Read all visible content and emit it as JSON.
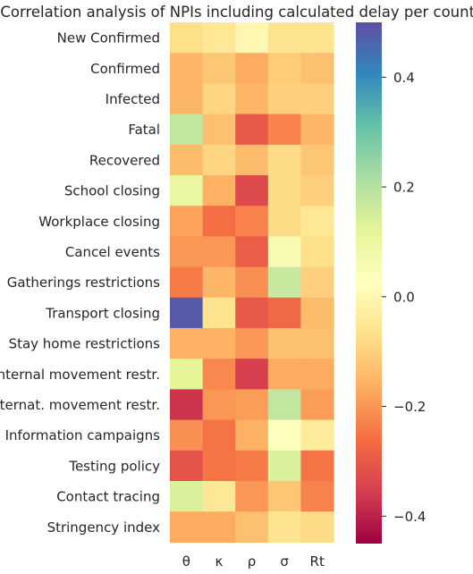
{
  "chart_data": {
    "type": "heatmap",
    "title": "Correlation analysis of NPIs including calculated delay per country",
    "columns": [
      "θ",
      "κ",
      "ρ",
      "σ",
      "Rt"
    ],
    "rows": [
      "New Confirmed",
      "Confirmed",
      "Infected",
      "Fatal",
      "Recovered",
      "School closing",
      "Workplace closing",
      "Cancel events",
      "Gatherings restrictions",
      "Transport closing",
      "Stay home restrictions",
      "Internal movement restr.",
      "Internat. movement restr.",
      "Information campaigns",
      "Testing policy",
      "Contact tracing",
      "Stringency index"
    ],
    "values": [
      [
        -0.07,
        -0.05,
        0.0,
        -0.06,
        -0.06
      ],
      [
        -0.15,
        -0.12,
        -0.17,
        -0.11,
        -0.13
      ],
      [
        -0.15,
        -0.09,
        -0.15,
        -0.1,
        -0.1
      ],
      [
        0.18,
        -0.13,
        -0.3,
        -0.23,
        -0.15
      ],
      [
        -0.14,
        -0.09,
        -0.14,
        -0.08,
        -0.12
      ],
      [
        0.1,
        -0.16,
        -0.33,
        -0.08,
        -0.1
      ],
      [
        -0.18,
        -0.26,
        -0.23,
        -0.08,
        -0.05
      ],
      [
        -0.2,
        -0.2,
        -0.29,
        0.06,
        -0.07
      ],
      [
        -0.24,
        -0.15,
        -0.21,
        0.17,
        -0.1
      ],
      [
        0.48,
        -0.06,
        -0.3,
        -0.27,
        -0.14
      ],
      [
        -0.16,
        -0.16,
        -0.2,
        -0.13,
        -0.13
      ],
      [
        0.12,
        -0.22,
        -0.35,
        -0.17,
        -0.17
      ],
      [
        -0.37,
        -0.2,
        -0.19,
        0.18,
        -0.19
      ],
      [
        -0.21,
        -0.25,
        -0.16,
        0.03,
        -0.04
      ],
      [
        -0.31,
        -0.25,
        -0.24,
        0.14,
        -0.25
      ],
      [
        0.14,
        -0.05,
        -0.2,
        -0.12,
        -0.23
      ],
      [
        -0.17,
        -0.17,
        -0.13,
        -0.06,
        -0.08
      ]
    ],
    "colorbar": {
      "min": -0.45,
      "max": 0.5,
      "colormap": "Spectral",
      "ticks": [
        0.4,
        0.2,
        0.0,
        -0.2,
        -0.4
      ],
      "tick_labels": [
        "0.4",
        "0.2",
        "0.0",
        "−0.2",
        "−0.4"
      ]
    },
    "grid": false
  }
}
